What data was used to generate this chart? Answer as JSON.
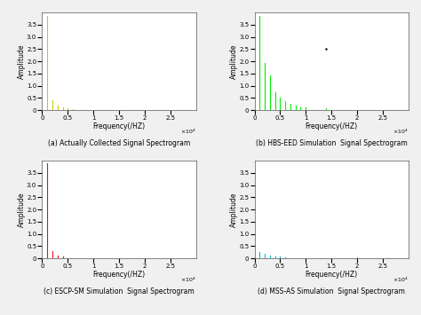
{
  "figsize": [
    4.74,
    3.55
  ],
  "dpi": 100,
  "xlim": [
    0,
    30000
  ],
  "ylim": [
    0,
    4
  ],
  "yticks": [
    0,
    0.5,
    1.0,
    1.5,
    2.0,
    2.5,
    3.0,
    3.5
  ],
  "xticks": [
    0,
    5000,
    10000,
    15000,
    20000,
    25000
  ],
  "xticklabels": [
    "0",
    "0.5",
    "1",
    "1.5",
    "2",
    "2.5"
  ],
  "xlabel": "Frequency(/HZ)",
  "ylabel": "Amplitude",
  "subplots": [
    {
      "title": "(a) Actually Collected Signal Spectrogram",
      "color": "#cccc00",
      "spikes": [
        {
          "freq": 1000,
          "amp": 3.85
        },
        {
          "freq": 2000,
          "amp": 0.42
        },
        {
          "freq": 3000,
          "amp": 0.18
        },
        {
          "freq": 4000,
          "amp": 0.1
        },
        {
          "freq": 5000,
          "amp": 0.07
        },
        {
          "freq": 6000,
          "amp": 0.05
        }
      ]
    },
    {
      "title": "(b) HBS-EED Simulation  Signal Spectrogram",
      "color": "#00ee00",
      "spikes": [
        {
          "freq": 1000,
          "amp": 3.85
        },
        {
          "freq": 2000,
          "amp": 1.95
        },
        {
          "freq": 3000,
          "amp": 1.42
        },
        {
          "freq": 4000,
          "amp": 0.72
        },
        {
          "freq": 5000,
          "amp": 0.5
        },
        {
          "freq": 6000,
          "amp": 0.35
        },
        {
          "freq": 7000,
          "amp": 0.25
        },
        {
          "freq": 8000,
          "amp": 0.18
        },
        {
          "freq": 9000,
          "amp": 0.13
        },
        {
          "freq": 10000,
          "amp": 0.1
        },
        {
          "freq": 14000,
          "amp": 0.07
        }
      ],
      "dot": {
        "freq": 14000,
        "amp": 2.5
      }
    },
    {
      "title": "(c) ESCP-SM Simulation  Signal Spectrogram",
      "color": "#ee1111",
      "spikes": [
        {
          "freq": 1000,
          "amp": 3.9
        },
        {
          "freq": 2000,
          "amp": 0.28
        },
        {
          "freq": 3000,
          "amp": 0.1
        },
        {
          "freq": 4000,
          "amp": 0.06
        }
      ]
    },
    {
      "title": "(d) MSS-AS Simulation  Signal Spectrogram",
      "color": "#00bbcc",
      "spikes": [
        {
          "freq": 1000,
          "amp": 0.26
        },
        {
          "freq": 2000,
          "amp": 0.18
        },
        {
          "freq": 3000,
          "amp": 0.13
        },
        {
          "freq": 4000,
          "amp": 0.09
        },
        {
          "freq": 5000,
          "amp": 0.07
        },
        {
          "freq": 6000,
          "amp": 0.05
        },
        {
          "freq": 20000,
          "amp": 0.04
        }
      ]
    }
  ],
  "background_color": "#f0f0f0",
  "title_fontsize": 5.5,
  "label_fontsize": 5.5,
  "tick_fontsize": 5.0
}
